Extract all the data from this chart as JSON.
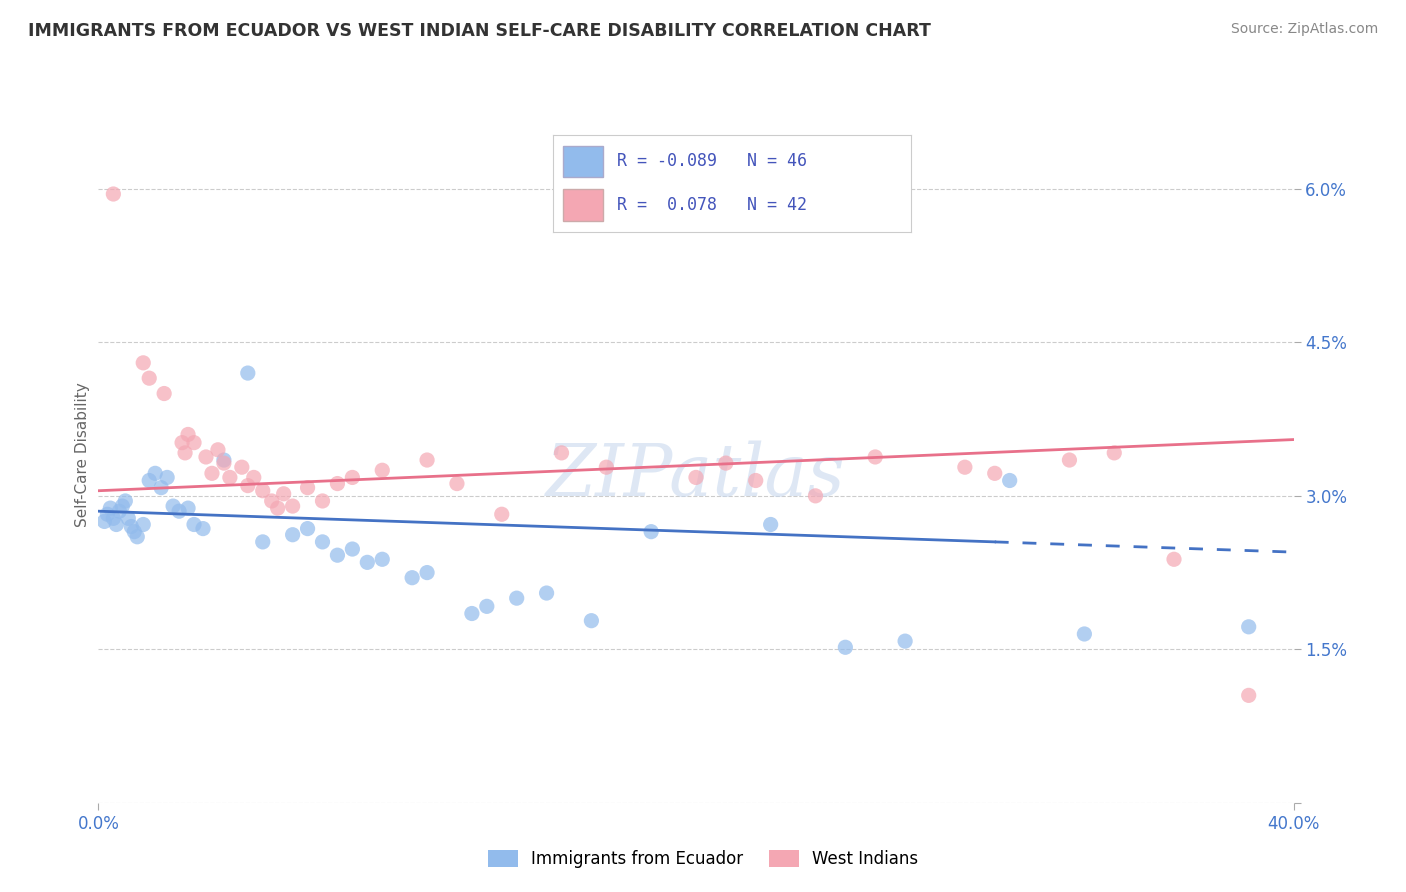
{
  "title": "IMMIGRANTS FROM ECUADOR VS WEST INDIAN SELF-CARE DISABILITY CORRELATION CHART",
  "source": "Source: ZipAtlas.com",
  "ylabel": "Self-Care Disability",
  "xlim": [
    0.0,
    40.0
  ],
  "ylim": [
    0.0,
    6.8
  ],
  "color_ecuador": "#92BBEC",
  "color_westindian": "#F4A7B3",
  "color_line_ecuador": "#4472C4",
  "color_line_westindian": "#E8708A",
  "ecuador_scatter": [
    [
      0.2,
      2.75
    ],
    [
      0.3,
      2.82
    ],
    [
      0.4,
      2.88
    ],
    [
      0.5,
      2.78
    ],
    [
      0.6,
      2.72
    ],
    [
      0.7,
      2.85
    ],
    [
      0.8,
      2.9
    ],
    [
      0.9,
      2.95
    ],
    [
      1.0,
      2.78
    ],
    [
      1.1,
      2.7
    ],
    [
      1.2,
      2.65
    ],
    [
      1.3,
      2.6
    ],
    [
      1.5,
      2.72
    ],
    [
      1.7,
      3.15
    ],
    [
      1.9,
      3.22
    ],
    [
      2.1,
      3.08
    ],
    [
      2.3,
      3.18
    ],
    [
      2.5,
      2.9
    ],
    [
      2.7,
      2.85
    ],
    [
      3.0,
      2.88
    ],
    [
      3.2,
      2.72
    ],
    [
      3.5,
      2.68
    ],
    [
      4.2,
      3.35
    ],
    [
      5.0,
      4.2
    ],
    [
      5.5,
      2.55
    ],
    [
      6.5,
      2.62
    ],
    [
      7.0,
      2.68
    ],
    [
      7.5,
      2.55
    ],
    [
      8.0,
      2.42
    ],
    [
      8.5,
      2.48
    ],
    [
      9.0,
      2.35
    ],
    [
      9.5,
      2.38
    ],
    [
      10.5,
      2.2
    ],
    [
      11.0,
      2.25
    ],
    [
      12.5,
      1.85
    ],
    [
      13.0,
      1.92
    ],
    [
      14.0,
      2.0
    ],
    [
      15.0,
      2.05
    ],
    [
      16.5,
      1.78
    ],
    [
      18.5,
      2.65
    ],
    [
      22.5,
      2.72
    ],
    [
      25.0,
      1.52
    ],
    [
      27.0,
      1.58
    ],
    [
      30.5,
      3.15
    ],
    [
      33.0,
      1.65
    ],
    [
      38.5,
      1.72
    ]
  ],
  "westindian_scatter": [
    [
      0.5,
      5.95
    ],
    [
      1.5,
      4.3
    ],
    [
      1.7,
      4.15
    ],
    [
      2.2,
      4.0
    ],
    [
      2.8,
      3.52
    ],
    [
      2.9,
      3.42
    ],
    [
      3.0,
      3.6
    ],
    [
      3.2,
      3.52
    ],
    [
      3.6,
      3.38
    ],
    [
      3.8,
      3.22
    ],
    [
      4.0,
      3.45
    ],
    [
      4.2,
      3.32
    ],
    [
      4.4,
      3.18
    ],
    [
      4.8,
      3.28
    ],
    [
      5.0,
      3.1
    ],
    [
      5.2,
      3.18
    ],
    [
      5.5,
      3.05
    ],
    [
      5.8,
      2.95
    ],
    [
      6.0,
      2.88
    ],
    [
      6.2,
      3.02
    ],
    [
      6.5,
      2.9
    ],
    [
      7.0,
      3.08
    ],
    [
      7.5,
      2.95
    ],
    [
      8.0,
      3.12
    ],
    [
      8.5,
      3.18
    ],
    [
      9.5,
      3.25
    ],
    [
      11.0,
      3.35
    ],
    [
      12.0,
      3.12
    ],
    [
      13.5,
      2.82
    ],
    [
      15.5,
      3.42
    ],
    [
      17.0,
      3.28
    ],
    [
      20.0,
      3.18
    ],
    [
      21.0,
      3.32
    ],
    [
      22.0,
      3.15
    ],
    [
      24.0,
      3.0
    ],
    [
      26.0,
      3.38
    ],
    [
      29.0,
      3.28
    ],
    [
      30.0,
      3.22
    ],
    [
      32.5,
      3.35
    ],
    [
      34.0,
      3.42
    ],
    [
      36.0,
      2.38
    ],
    [
      38.5,
      1.05
    ]
  ],
  "ecuador_line_x0": 0.0,
  "ecuador_line_y0": 2.85,
  "ecuador_line_x1": 40.0,
  "ecuador_line_y1": 2.45,
  "ecuador_line_solid_end": 30.0,
  "westindian_line_x0": 0.0,
  "westindian_line_y0": 3.05,
  "westindian_line_x1": 40.0,
  "westindian_line_y1": 3.55,
  "grid_yticks": [
    0.0,
    1.5,
    3.0,
    4.5,
    6.0
  ],
  "ytick_labels": [
    "",
    "1.5%",
    "3.0%",
    "4.5%",
    "6.0%"
  ],
  "xtick_labels": [
    "0.0%",
    "40.0%"
  ],
  "xtick_vals": [
    0.0,
    40.0
  ],
  "legend_items": [
    {
      "label": "R = -0.089   N = 46",
      "color": "#92BBEC"
    },
    {
      "label": "R =  0.078   N = 42",
      "color": "#F4A7B3"
    }
  ],
  "bottom_legend": [
    "Immigrants from Ecuador",
    "West Indians"
  ],
  "watermark": "ZIPatlas"
}
